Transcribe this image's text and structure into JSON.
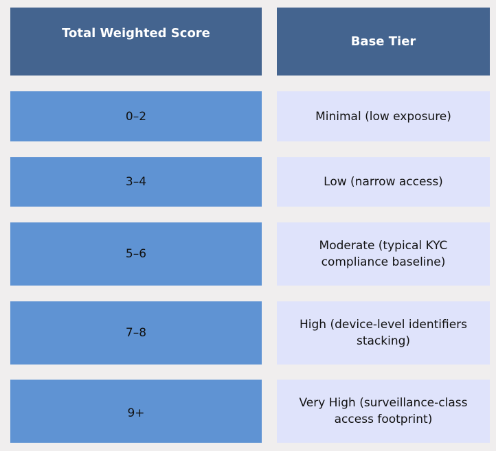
{
  "header": {
    "score_label": "Total Weighted Score",
    "tier_label": "Base Tier"
  },
  "rows": [
    {
      "score": "0–2",
      "tier": "Minimal (low exposure)"
    },
    {
      "score": "3–4",
      "tier": "Low (narrow access)"
    },
    {
      "score": "5–6",
      "tier": "Moderate (typical KYC compliance baseline)"
    },
    {
      "score": "7–8",
      "tier": "High (device-level identifiers stacking)"
    },
    {
      "score": "9+",
      "tier": "Very High (surveillance-class access footprint)"
    }
  ],
  "colors": {
    "background": "#f0eeee",
    "header_fill": "#44648f",
    "score_fill": "#5f93d3",
    "tier_fill": "#dfe3fb",
    "header_text": "#ffffff",
    "body_text": "#111111"
  }
}
